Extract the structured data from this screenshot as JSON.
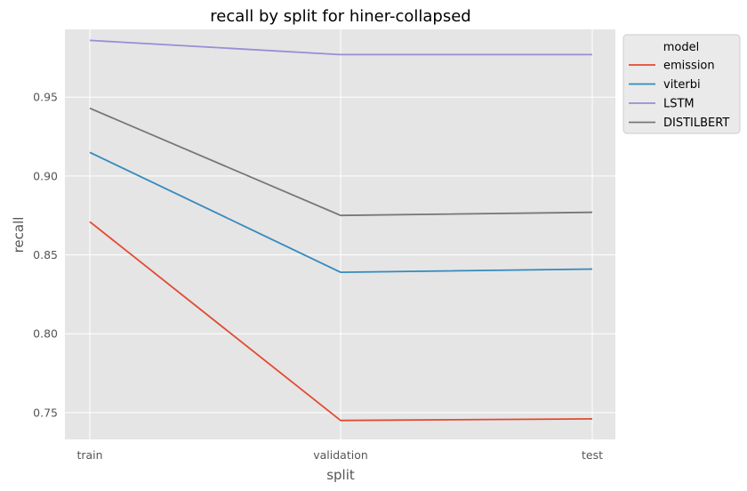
{
  "chart_data": {
    "type": "line",
    "title": "recall by split for hiner-collapsed",
    "xlabel": "split",
    "ylabel": "recall",
    "categories": [
      "train",
      "validation",
      "test"
    ],
    "ylim": [
      0.733,
      0.993
    ],
    "yticks": [
      "0.75",
      "0.80",
      "0.85",
      "0.90",
      "0.95"
    ],
    "grid": true,
    "legend_placement": "outside-top-right",
    "legend_title": "model",
    "series": [
      {
        "name": "emission",
        "color": "#E24A33",
        "values": [
          0.871,
          0.745,
          0.746
        ]
      },
      {
        "name": "viterbi",
        "color": "#348ABD",
        "values": [
          0.915,
          0.839,
          0.841
        ]
      },
      {
        "name": "LSTM",
        "color": "#988ED5",
        "values": [
          0.986,
          0.977,
          0.977
        ]
      },
      {
        "name": "DISTILBERT",
        "color": "#777777",
        "values": [
          0.943,
          0.875,
          0.877
        ]
      }
    ]
  }
}
